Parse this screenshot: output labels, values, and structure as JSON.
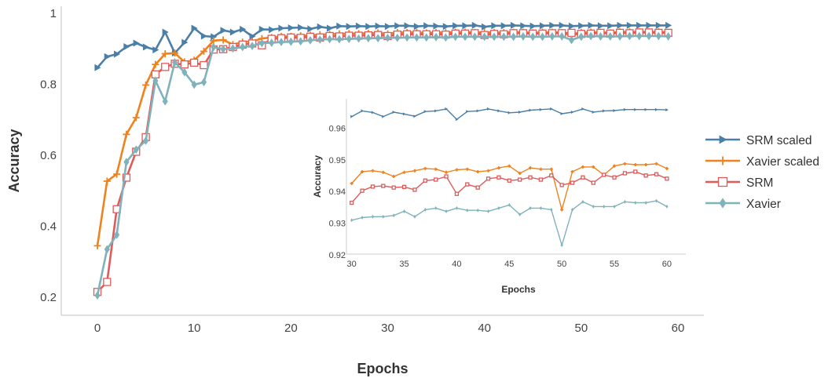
{
  "chart_data": [
    {
      "type": "line",
      "role": "main",
      "xlabel": "Epochs",
      "ylabel": "Accuracy",
      "xlim": [
        0,
        60
      ],
      "ylim": [
        0.2,
        1.0
      ],
      "xticks": [
        "0",
        "10",
        "20",
        "30",
        "40",
        "50",
        "60"
      ],
      "yticks": [
        "0.2",
        "0.4",
        "0.6",
        "0.8",
        "1"
      ],
      "grid": false,
      "legend_position": "right",
      "series": [
        {
          "name": "SRM scaled",
          "color": "#4a7fa8",
          "marker": "triangle-right",
          "x": [
            0,
            1,
            2,
            3,
            4,
            5,
            6,
            7,
            8,
            9,
            10,
            11,
            12,
            13,
            14,
            15,
            16,
            17,
            18,
            19,
            20,
            21,
            22,
            23,
            24,
            25,
            26,
            27,
            28,
            29,
            30,
            31,
            32,
            33,
            34,
            35,
            36,
            37,
            38,
            39,
            40,
            41,
            42,
            43,
            44,
            45,
            46,
            47,
            48,
            49,
            50,
            51,
            52,
            53,
            54,
            55,
            56,
            57,
            58,
            59
          ],
          "y": [
            0.847,
            0.878,
            0.885,
            0.906,
            0.916,
            0.905,
            0.897,
            0.947,
            0.888,
            0.918,
            0.958,
            0.936,
            0.934,
            0.952,
            0.947,
            0.955,
            0.935,
            0.955,
            0.954,
            0.958,
            0.959,
            0.96,
            0.956,
            0.962,
            0.958,
            0.964,
            0.963,
            0.964,
            0.963,
            0.964,
            0.963,
            0.965,
            0.965,
            0.963,
            0.965,
            0.964,
            0.963,
            0.965,
            0.965,
            0.966,
            0.962,
            0.965,
            0.965,
            0.966,
            0.965,
            0.964,
            0.965,
            0.966,
            0.966,
            0.964,
            0.965,
            0.966,
            0.965,
            0.965,
            0.966,
            0.966,
            0.966,
            0.966,
            0.966,
            0.966
          ]
        },
        {
          "name": "Xavier scaled",
          "color": "#f0821e",
          "marker": "plus",
          "x": [
            0,
            1,
            2,
            3,
            4,
            5,
            6,
            7,
            8,
            9,
            10,
            11,
            12,
            13,
            14,
            15,
            16,
            17,
            18,
            19,
            20,
            21,
            22,
            23,
            24,
            25,
            26,
            27,
            28,
            29,
            30,
            31,
            32,
            33,
            34,
            35,
            36,
            37,
            38,
            39,
            40,
            41,
            42,
            43,
            44,
            45,
            46,
            47,
            48,
            49,
            50,
            51,
            52,
            53,
            54,
            55,
            56,
            57,
            58,
            59
          ],
          "y": [
            0.345,
            0.527,
            0.547,
            0.659,
            0.706,
            0.798,
            0.856,
            0.886,
            0.888,
            0.863,
            0.868,
            0.893,
            0.923,
            0.925,
            0.912,
            0.919,
            0.921,
            0.929,
            0.932,
            0.935,
            0.935,
            0.937,
            0.938,
            0.94,
            0.941,
            0.942,
            0.943,
            0.943,
            0.944,
            0.945,
            0.942,
            0.946,
            0.946,
            0.946,
            0.945,
            0.946,
            0.946,
            0.947,
            0.947,
            0.946,
            0.947,
            0.946,
            0.946,
            0.947,
            0.947,
            0.945,
            0.947,
            0.947,
            0.946,
            0.936,
            0.946,
            0.947,
            0.947,
            0.945,
            0.948,
            0.948,
            0.948,
            0.948,
            0.948,
            0.947
          ]
        },
        {
          "name": "SRM",
          "color": "#e05a5a",
          "marker": "square",
          "x": [
            0,
            1,
            2,
            3,
            4,
            5,
            6,
            7,
            8,
            9,
            10,
            11,
            12,
            13,
            14,
            15,
            16,
            17,
            18,
            19,
            20,
            21,
            22,
            23,
            24,
            25,
            26,
            27,
            28,
            29,
            30,
            31,
            32,
            33,
            34,
            35,
            36,
            37,
            38,
            39,
            40,
            41,
            42,
            43,
            44,
            45,
            46,
            47,
            48,
            49,
            50,
            51,
            52,
            53,
            54,
            55,
            56,
            57,
            58,
            59
          ],
          "y": [
            0.215,
            0.243,
            0.448,
            0.537,
            0.61,
            0.651,
            0.828,
            0.849,
            0.858,
            0.856,
            0.861,
            0.854,
            0.898,
            0.899,
            0.905,
            0.912,
            0.915,
            0.91,
            0.928,
            0.93,
            0.932,
            0.931,
            0.934,
            0.932,
            0.936,
            0.935,
            0.937,
            0.937,
            0.938,
            0.939,
            0.936,
            0.94,
            0.941,
            0.941,
            0.941,
            0.941,
            0.94,
            0.943,
            0.943,
            0.944,
            0.939,
            0.942,
            0.941,
            0.944,
            0.944,
            0.943,
            0.943,
            0.944,
            0.944,
            0.945,
            0.942,
            0.943,
            0.945,
            0.943,
            0.945,
            0.944,
            0.946,
            0.946,
            0.945,
            0.945
          ]
        },
        {
          "name": "Xavier",
          "color": "#7fb2ba",
          "marker": "diamond",
          "x": [
            0,
            1,
            2,
            3,
            4,
            5,
            6,
            7,
            8,
            9,
            10,
            11,
            12,
            13,
            14,
            15,
            16,
            17,
            18,
            19,
            20,
            21,
            22,
            23,
            24,
            25,
            26,
            27,
            28,
            29,
            30,
            31,
            32,
            33,
            34,
            35,
            36,
            37,
            38,
            39,
            40,
            41,
            42,
            43,
            44,
            45,
            46,
            47,
            48,
            49,
            50,
            51,
            52,
            53,
            54,
            55,
            56,
            57,
            58,
            59
          ],
          "y": [
            0.205,
            0.335,
            0.376,
            0.581,
            0.616,
            0.641,
            0.81,
            0.752,
            0.862,
            0.834,
            0.799,
            0.806,
            0.905,
            0.899,
            0.901,
            0.905,
            0.908,
            0.916,
            0.917,
            0.919,
            0.92,
            0.921,
            0.924,
            0.926,
            0.927,
            0.927,
            0.928,
            0.929,
            0.93,
            0.93,
            0.931,
            0.931,
            0.932,
            0.932,
            0.932,
            0.933,
            0.932,
            0.934,
            0.934,
            0.934,
            0.934,
            0.934,
            0.934,
            0.934,
            0.935,
            0.934,
            0.934,
            0.935,
            0.935,
            0.925,
            0.934,
            0.936,
            0.935,
            0.935,
            0.935,
            0.936,
            0.936,
            0.936,
            0.936,
            0.935
          ]
        }
      ]
    },
    {
      "type": "line",
      "role": "inset",
      "xlabel": "Epochs",
      "ylabel": "Accuracy",
      "xlim": [
        29.5,
        61.8
      ],
      "ylim": [
        0.92,
        0.969
      ],
      "xticks": [
        "30",
        "35",
        "40",
        "45",
        "50",
        "55",
        "60"
      ],
      "yticks": [
        "0.92",
        "0.93",
        "0.94",
        "0.95",
        "0.96"
      ],
      "grid": false,
      "series": [
        {
          "name": "SRM scaled",
          "color": "#4a7fa8",
          "marker": "triangle-right",
          "x": [
            30,
            31,
            32,
            33,
            34,
            35,
            36,
            37,
            38,
            39,
            40,
            41,
            42,
            43,
            44,
            45,
            46,
            47,
            48,
            49,
            50,
            51,
            52,
            53,
            54,
            55,
            56,
            57,
            58,
            59,
            60
          ],
          "y": [
            0.9634,
            0.9652,
            0.9647,
            0.9634,
            0.9648,
            0.9642,
            0.9635,
            0.965,
            0.9652,
            0.9658,
            0.9625,
            0.965,
            0.9652,
            0.9658,
            0.9652,
            0.9646,
            0.9648,
            0.9654,
            0.9656,
            0.9658,
            0.9643,
            0.9648,
            0.9658,
            0.9648,
            0.9652,
            0.9653,
            0.9656,
            0.9656,
            0.9656,
            0.9656,
            0.9655
          ]
        },
        {
          "name": "Xavier scaled",
          "color": "#f0821e",
          "marker": "plus",
          "x": [
            30,
            31,
            32,
            33,
            34,
            35,
            36,
            37,
            38,
            39,
            40,
            41,
            42,
            43,
            44,
            45,
            46,
            47,
            48,
            49,
            50,
            51,
            52,
            53,
            54,
            55,
            56,
            57,
            58,
            59,
            60
          ],
          "y": [
            0.9423,
            0.946,
            0.9463,
            0.9458,
            0.9445,
            0.9458,
            0.9463,
            0.947,
            0.9468,
            0.9458,
            0.9466,
            0.9468,
            0.946,
            0.9463,
            0.9472,
            0.9478,
            0.9455,
            0.9472,
            0.9468,
            0.9468,
            0.934,
            0.946,
            0.9475,
            0.9475,
            0.945,
            0.9478,
            0.9485,
            0.9482,
            0.9482,
            0.9485,
            0.947
          ]
        },
        {
          "name": "SRM",
          "color": "#e05a5a",
          "marker": "square",
          "x": [
            30,
            31,
            32,
            33,
            34,
            35,
            36,
            37,
            38,
            39,
            40,
            41,
            42,
            43,
            44,
            45,
            46,
            47,
            48,
            49,
            50,
            51,
            52,
            53,
            54,
            55,
            56,
            57,
            58,
            59,
            60
          ],
          "y": [
            0.9362,
            0.94,
            0.9413,
            0.9415,
            0.941,
            0.9412,
            0.9403,
            0.9432,
            0.9435,
            0.9445,
            0.939,
            0.942,
            0.941,
            0.9438,
            0.9442,
            0.9432,
            0.9435,
            0.9442,
            0.9435,
            0.9448,
            0.9418,
            0.9425,
            0.9442,
            0.9425,
            0.945,
            0.9442,
            0.9455,
            0.946,
            0.9448,
            0.9452,
            0.9438
          ]
        },
        {
          "name": "Xavier",
          "color": "#7fb2ba",
          "marker": "diamond",
          "x": [
            30,
            31,
            32,
            33,
            34,
            35,
            36,
            37,
            38,
            39,
            40,
            41,
            42,
            43,
            44,
            45,
            46,
            47,
            48,
            49,
            50,
            51,
            52,
            53,
            54,
            55,
            56,
            57,
            58,
            59,
            60
          ],
          "y": [
            0.9307,
            0.9315,
            0.9318,
            0.9318,
            0.9322,
            0.9335,
            0.9318,
            0.934,
            0.9345,
            0.9335,
            0.9345,
            0.9338,
            0.9338,
            0.9335,
            0.9345,
            0.9355,
            0.9325,
            0.9345,
            0.9345,
            0.934,
            0.9228,
            0.934,
            0.9365,
            0.935,
            0.935,
            0.935,
            0.9365,
            0.9362,
            0.9362,
            0.9368,
            0.935
          ]
        }
      ]
    }
  ]
}
